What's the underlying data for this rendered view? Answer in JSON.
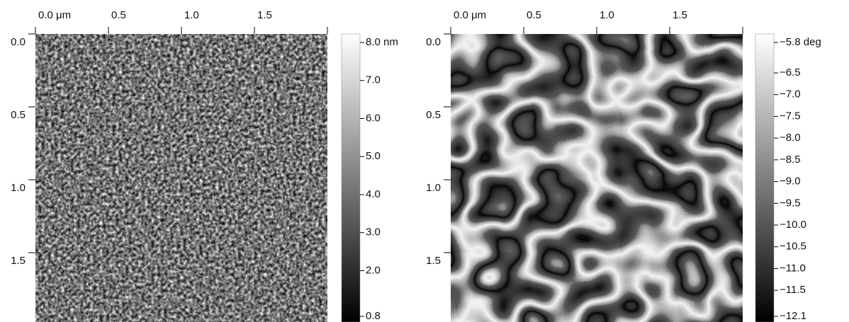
{
  "chart_data": [
    {
      "type": "image",
      "xlim": [
        0,
        2
      ],
      "ylim": [
        0,
        2
      ],
      "xticks": [
        {
          "value": 0,
          "label": "0.0 μm"
        },
        0.5,
        {
          "value": 1,
          "label": "1.0"
        },
        1.5
      ],
      "yticks": [
        {
          "value": 0,
          "label": "0.0"
        },
        0.5,
        {
          "value": 1,
          "label": "1.0"
        },
        1.5
      ],
      "clim": [
        0.8,
        8.0
      ],
      "cticks": [
        {
          "value": 8,
          "label": "8.0 nm"
        },
        {
          "value": 7,
          "label": "7.0"
        },
        {
          "value": 6,
          "label": "6.0"
        },
        {
          "value": 5,
          "label": "5.0"
        },
        {
          "value": 4,
          "label": "4.0"
        },
        {
          "value": 3,
          "label": "3.0"
        },
        {
          "value": 2,
          "label": "2.0"
        },
        0.8
      ]
    },
    {
      "type": "image",
      "xlim": [
        0,
        2
      ],
      "ylim": [
        0,
        2
      ],
      "xticks": [
        {
          "value": 0,
          "label": "0.0 μm"
        },
        0.5,
        {
          "value": 1,
          "label": "1.0"
        },
        1.5
      ],
      "yticks": [
        {
          "value": 0,
          "label": "0.0"
        },
        0.5,
        {
          "value": 1,
          "label": "1.0"
        },
        1.5
      ],
      "clim": [
        -12.1,
        -5.8
      ],
      "cticks": [
        {
          "value": -5.8,
          "label": "−5.8 deg"
        },
        {
          "value": -6.5,
          "label": "−6.5"
        },
        {
          "value": -7,
          "label": "−7.0"
        },
        {
          "value": -7.5,
          "label": "−7.5"
        },
        {
          "value": -8,
          "label": "−8.0"
        },
        {
          "value": -8.5,
          "label": "−8.5"
        },
        {
          "value": -9,
          "label": "−9.0"
        },
        {
          "value": -9.5,
          "label": "−9.5"
        },
        {
          "value": -10,
          "label": "−10.0"
        },
        {
          "value": -10.5,
          "label": "−10.5"
        },
        {
          "value": -11,
          "label": "−11.0"
        },
        {
          "value": -11.5,
          "label": "−11.5"
        },
        {
          "value": -12.1,
          "label": "−12.1"
        }
      ]
    }
  ]
}
